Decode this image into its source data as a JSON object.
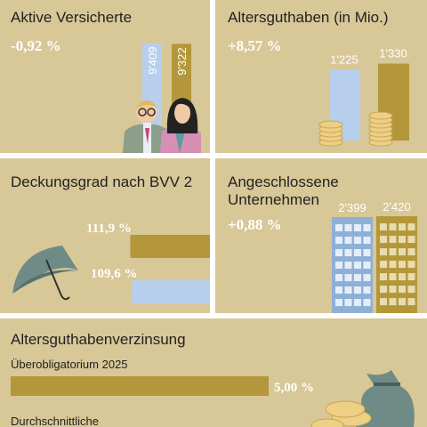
{
  "panels": [
    {
      "title": "Aktive Versicherte",
      "change": "-0,92 %",
      "values": [
        {
          "value": 9409,
          "label": "9'409"
        },
        {
          "value": 9322,
          "label": "9'322"
        }
      ]
    },
    {
      "title": "Altersguthaben (in Mio.)",
      "change": "+8,57 %",
      "values": [
        {
          "value": 1225,
          "label": "1'225"
        },
        {
          "value": 1330,
          "label": "1'330"
        }
      ]
    },
    {
      "title": "Deckungsgrad nach BVV 2",
      "values": [
        {
          "value": 111.9,
          "label": "111,9 %"
        },
        {
          "value": 109.6,
          "label": "109,6 %"
        }
      ]
    },
    {
      "title": [
        "Angeschlossene",
        "Unternehmen"
      ],
      "change": "+0,88 %",
      "values": [
        {
          "value": 2399,
          "label": "2'399"
        },
        {
          "value": 2420,
          "label": "2'420"
        }
      ]
    }
  ],
  "interest": {
    "title": "Altersguthabenverzinsung",
    "items": [
      {
        "label": "Überobligatorium 2025",
        "value": 5,
        "value_label": "5,00 %"
      },
      {
        "label": "Durchschnittliche"
      }
    ]
  }
}
